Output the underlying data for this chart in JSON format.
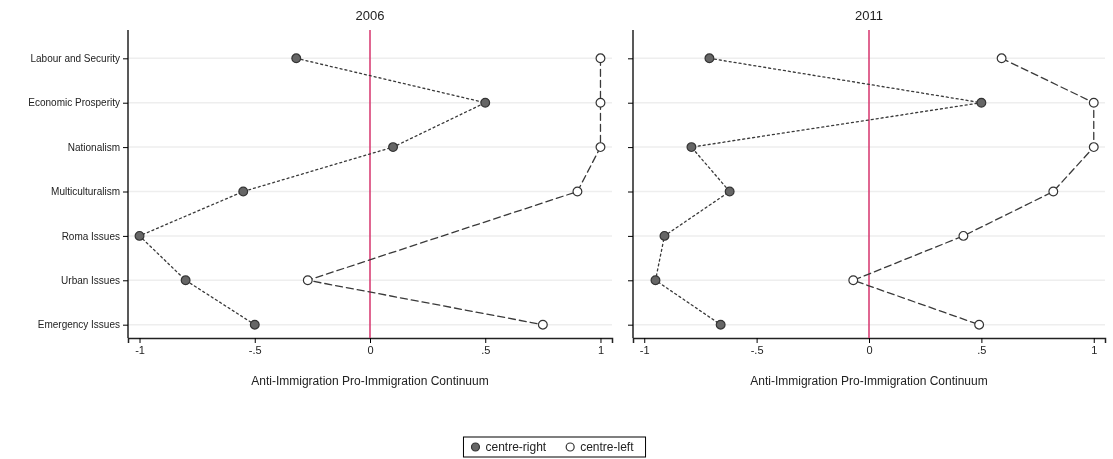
{
  "chart_data": [
    {
      "type": "line",
      "orientation": "horizontal",
      "title": "2006",
      "xlabel": "Anti-Immigration Pro-Immigration Continuum",
      "categories": [
        "Labour and Security",
        "Economic Prosperity",
        "Nationalism",
        "Multiculturalism",
        "Roma Issues",
        "Urban Issues",
        "Emergency Issues"
      ],
      "series": [
        {
          "name": "centre-right",
          "color": "#666666",
          "line_style": "dotted",
          "values": [
            -0.32,
            0.5,
            0.1,
            -0.55,
            -1,
            -0.8,
            -0.5
          ]
        },
        {
          "name": "centre-left",
          "color": "#ffffff",
          "line_style": "dashed",
          "values": [
            1,
            1,
            1,
            0.9,
            null,
            -0.27,
            0.75
          ]
        }
      ],
      "xlim": [
        -1.05,
        1.05
      ],
      "xticks": [
        {
          "value": -1,
          "label": "-1"
        },
        {
          "value": -0.5,
          "label": "-.5"
        },
        {
          "value": 0,
          "label": "0"
        },
        {
          "value": 0.5,
          "label": ".5"
        },
        {
          "value": 1,
          "label": "1"
        }
      ],
      "ref_lines": [
        {
          "axis": "x",
          "value": 0,
          "color": "#d6336c"
        }
      ],
      "grid": "y",
      "marker": "circle",
      "legend": "bottom"
    },
    {
      "type": "line",
      "orientation": "horizontal",
      "title": "2011",
      "xlabel": "Anti-Immigration Pro-Immigration Continuum",
      "categories": [
        null,
        null,
        null,
        null,
        null,
        null,
        null
      ],
      "series": [
        {
          "color": "#666666",
          "line_style": "dotted",
          "values": [
            -0.71,
            0.5,
            -0.79,
            -0.62,
            -0.91,
            -0.95,
            -0.66
          ]
        },
        {
          "color": "#ffffff",
          "line_style": "dashed",
          "values": [
            0.59,
            1,
            1,
            0.82,
            0.42,
            -0.07,
            0.49
          ]
        }
      ],
      "xlim": [
        -1.05,
        1.05
      ],
      "xticks": [
        {
          "value": -1,
          "label": "-1"
        },
        {
          "value": -0.5,
          "label": "-.5"
        },
        {
          "value": 0,
          "label": "0"
        },
        {
          "value": 0.5,
          "label": ".5"
        },
        {
          "value": 1,
          "label": "1"
        }
      ],
      "ref_lines": [
        {
          "axis": "x",
          "value": 0,
          "color": "#d6336c"
        }
      ],
      "grid": "y",
      "marker": "circle",
      "tick_labels": "x"
    }
  ]
}
